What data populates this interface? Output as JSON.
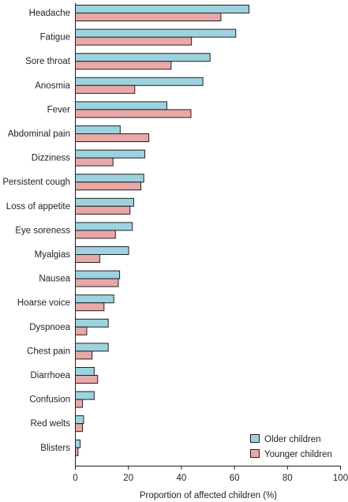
{
  "chart_data": {
    "type": "bar",
    "orientation": "horizontal",
    "categories": [
      "Headache",
      "Fatigue",
      "Sore throat",
      "Anosmia",
      "Fever",
      "Abdominal pain",
      "Dizziness",
      "Persistent cough",
      "Loss of appetite",
      "Eye soreness",
      "Myalgias",
      "Nausea",
      "Hoarse voice",
      "Dyspnoea",
      "Chest pain",
      "Diarrhoea",
      "Confusion",
      "Red welts",
      "Blisters"
    ],
    "series": [
      {
        "name": "Older children",
        "color": "#9dd3df",
        "values": [
          65.5,
          60.5,
          50.8,
          48.1,
          34.5,
          16.9,
          26.2,
          25.8,
          22.0,
          21.5,
          20.1,
          16.7,
          14.5,
          12.4,
          12.4,
          7.1,
          7.1,
          3.1,
          1.8
        ]
      },
      {
        "name": "Younger children",
        "color": "#e8a8a8",
        "values": [
          54.9,
          43.8,
          36.1,
          22.4,
          43.6,
          27.7,
          14.2,
          24.7,
          20.6,
          15.1,
          9.2,
          16.2,
          10.8,
          4.3,
          6.3,
          8.4,
          2.7,
          2.7,
          1.0
        ]
      }
    ],
    "xlabel": "Proportion of affected children (%)",
    "ylabel": "",
    "xlim": [
      0,
      100
    ],
    "xticks": [
      0,
      20,
      40,
      60,
      80,
      100
    ],
    "legend_position": "bottom-right",
    "grid": false
  }
}
